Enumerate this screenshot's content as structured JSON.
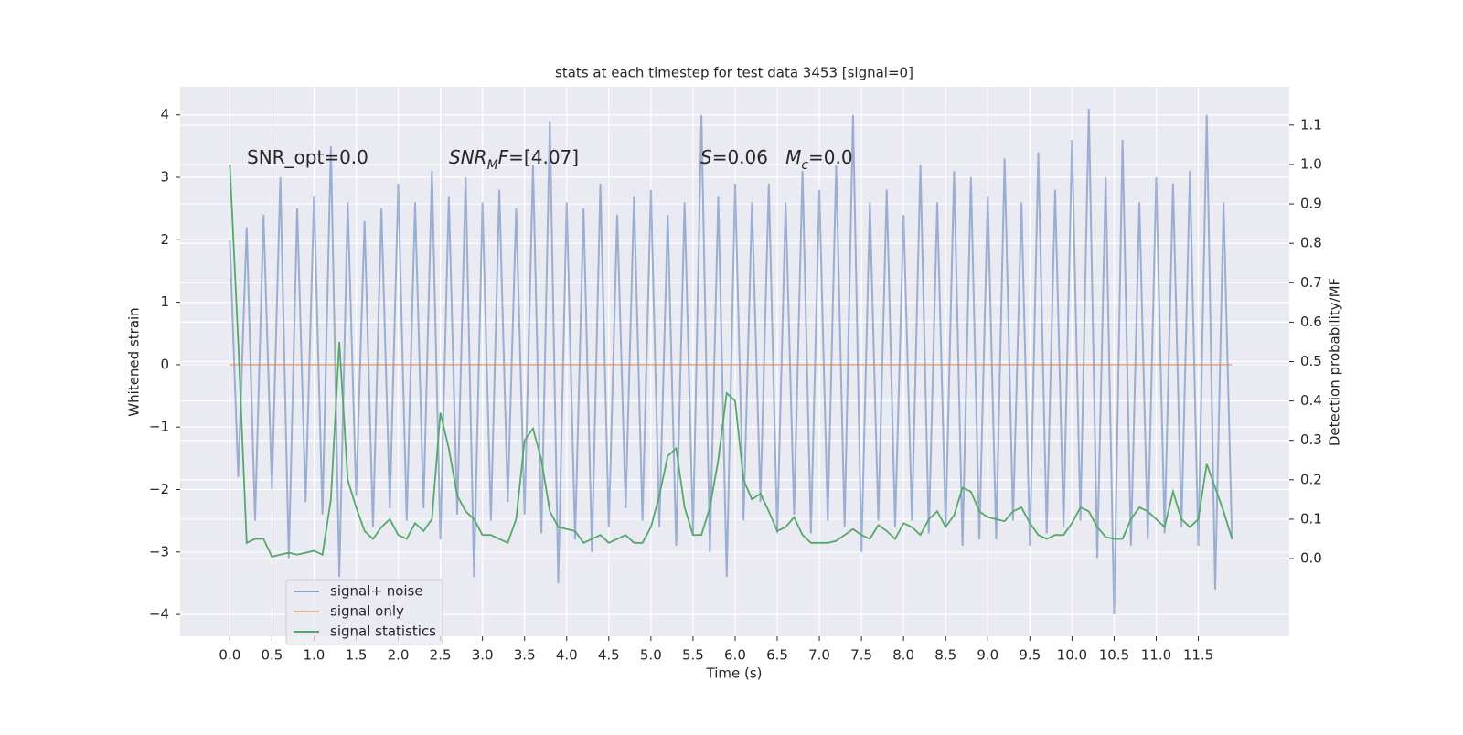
{
  "chart_data": {
    "type": "line",
    "title": "stats at each timestep for test data 3453 [signal=0]",
    "xlabel": "Time (s)",
    "ylabel": "Whitened strain",
    "y2label": "Detection probability/MF",
    "annotations": [
      [
        {
          "text": "SNR_opt=0.0",
          "style": "normal"
        }
      ],
      [
        {
          "text": "SNR",
          "style": "italic"
        },
        {
          "text": "M",
          "style": "sub"
        },
        {
          "text": "F",
          "style": "italic"
        },
        {
          "text": "=[4.07]",
          "style": "normal"
        }
      ],
      [
        {
          "text": "S",
          "style": "italic"
        },
        {
          "text": "=0.06   ",
          "style": "normal"
        },
        {
          "text": "M",
          "style": "italic"
        },
        {
          "text": "c",
          "style": "sub"
        },
        {
          "text": "=0.0",
          "style": "normal"
        }
      ]
    ],
    "x": [
      0,
      0.1,
      0.2,
      0.3,
      0.4,
      0.5,
      0.6,
      0.7,
      0.8,
      0.9,
      1,
      1.1,
      1.2,
      1.3,
      1.4,
      1.5,
      1.6,
      1.7,
      1.8,
      1.9,
      2,
      2.1,
      2.2,
      2.3,
      2.4,
      2.5,
      2.6,
      2.7,
      2.8,
      2.9,
      3,
      3.1,
      3.2,
      3.3,
      3.4,
      3.5,
      3.6,
      3.7,
      3.8,
      3.9,
      4,
      4.1,
      4.2,
      4.3,
      4.4,
      4.5,
      4.6,
      4.7,
      4.8,
      4.9,
      5,
      5.1,
      5.2,
      5.3,
      5.4,
      5.5,
      5.6,
      5.7,
      5.8,
      5.9,
      6,
      6.1,
      6.2,
      6.3,
      6.4,
      6.5,
      6.6,
      6.7,
      6.8,
      6.9,
      7,
      7.1,
      7.2,
      7.3,
      7.4,
      7.5,
      7.6,
      7.7,
      7.8,
      7.9,
      8,
      8.1,
      8.2,
      8.3,
      8.4,
      8.5,
      8.6,
      8.7,
      8.8,
      8.9,
      9,
      9.1,
      9.2,
      9.3,
      9.4,
      9.5,
      9.6,
      9.7,
      9.8,
      9.9,
      10,
      10.1,
      10.2,
      10.3,
      10.4,
      10.5,
      10.6,
      10.7,
      10.8,
      10.9,
      11,
      11.1,
      11.2,
      11.3,
      11.4,
      11.5,
      11.6,
      11.7,
      11.8,
      11.9
    ],
    "series": [
      {
        "name": "signal+ noise",
        "color": "#4c72b0",
        "axis": "y",
        "values": [
          2.0,
          -1.8,
          2.2,
          -2.5,
          2.4,
          -2.0,
          3.0,
          -3.1,
          2.5,
          -2.2,
          2.7,
          -2.4,
          3.5,
          -3.4,
          2.6,
          -2.1,
          2.3,
          -2.6,
          2.5,
          -2.3,
          2.9,
          -2.5,
          2.6,
          -2.3,
          3.1,
          -2.8,
          2.7,
          -2.4,
          3.0,
          -3.4,
          2.6,
          -2.5,
          2.8,
          -2.2,
          2.5,
          -2.4,
          3.2,
          -2.7,
          3.9,
          -3.5,
          2.6,
          -2.8,
          2.5,
          -3.0,
          2.9,
          -2.6,
          2.4,
          -2.3,
          2.7,
          -2.5,
          2.8,
          -2.6,
          2.4,
          -2.9,
          2.6,
          -2.7,
          4.0,
          -3.0,
          2.7,
          -3.4,
          2.9,
          -2.5,
          2.6,
          -2.2,
          2.9,
          -2.7,
          2.6,
          -2.4,
          3.1,
          -2.7,
          2.8,
          -2.5,
          3.2,
          -2.6,
          4.0,
          -3.0,
          2.6,
          -2.5,
          2.8,
          -2.6,
          2.4,
          -2.5,
          3.2,
          -2.7,
          2.6,
          -2.6,
          3.1,
          -2.9,
          3.0,
          -2.8,
          2.7,
          -2.8,
          3.3,
          -2.5,
          2.6,
          -2.9,
          3.4,
          -2.7,
          2.8,
          -2.6,
          3.6,
          -2.5,
          4.1,
          -3.1,
          3.0,
          -4.0,
          3.6,
          -2.9,
          2.6,
          -2.8,
          3.0,
          -2.7,
          2.9,
          -2.6,
          3.1,
          -2.9,
          4.0,
          -3.6,
          2.6,
          -2.8
        ]
      },
      {
        "name": "signal only",
        "color": "#dd8452",
        "axis": "y",
        "values": [
          0,
          0,
          0,
          0,
          0,
          0,
          0,
          0,
          0,
          0,
          0,
          0,
          0,
          0,
          0,
          0,
          0,
          0,
          0,
          0,
          0,
          0,
          0,
          0,
          0,
          0,
          0,
          0,
          0,
          0,
          0,
          0,
          0,
          0,
          0,
          0,
          0,
          0,
          0,
          0,
          0,
          0,
          0,
          0,
          0,
          0,
          0,
          0,
          0,
          0,
          0,
          0,
          0,
          0,
          0,
          0,
          0,
          0,
          0,
          0,
          0,
          0,
          0,
          0,
          0,
          0,
          0,
          0,
          0,
          0,
          0,
          0,
          0,
          0,
          0,
          0,
          0,
          0,
          0,
          0,
          0,
          0,
          0,
          0,
          0,
          0,
          0,
          0,
          0,
          0,
          0,
          0,
          0,
          0,
          0,
          0,
          0,
          0,
          0,
          0,
          0,
          0,
          0,
          0,
          0,
          0,
          0,
          0,
          0,
          0,
          0,
          0,
          0,
          0,
          0,
          0,
          0,
          0,
          0,
          0
        ]
      },
      {
        "name": "signal statistics",
        "color": "#55a868",
        "axis": "y2",
        "values": [
          1.0,
          0.55,
          0.04,
          0.05,
          0.05,
          0.005,
          0.01,
          0.015,
          0.01,
          0.015,
          0.02,
          0.01,
          0.15,
          0.55,
          0.2,
          0.13,
          0.07,
          0.05,
          0.08,
          0.1,
          0.06,
          0.05,
          0.09,
          0.07,
          0.1,
          0.37,
          0.28,
          0.16,
          0.12,
          0.1,
          0.06,
          0.06,
          0.05,
          0.04,
          0.1,
          0.3,
          0.33,
          0.25,
          0.12,
          0.08,
          0.075,
          0.07,
          0.04,
          0.05,
          0.06,
          0.04,
          0.05,
          0.06,
          0.04,
          0.04,
          0.08,
          0.16,
          0.26,
          0.28,
          0.13,
          0.06,
          0.06,
          0.13,
          0.25,
          0.42,
          0.4,
          0.2,
          0.15,
          0.165,
          0.12,
          0.07,
          0.08,
          0.105,
          0.06,
          0.04,
          0.04,
          0.04,
          0.045,
          0.06,
          0.075,
          0.06,
          0.05,
          0.085,
          0.07,
          0.05,
          0.09,
          0.08,
          0.06,
          0.1,
          0.12,
          0.08,
          0.11,
          0.18,
          0.17,
          0.12,
          0.105,
          0.1,
          0.095,
          0.12,
          0.13,
          0.09,
          0.06,
          0.05,
          0.06,
          0.06,
          0.09,
          0.13,
          0.12,
          0.08,
          0.055,
          0.05,
          0.05,
          0.1,
          0.13,
          0.12,
          0.1,
          0.08,
          0.17,
          0.1,
          0.08,
          0.1,
          0.24,
          0.18,
          0.12,
          0.05
        ]
      }
    ],
    "xlim": [
      -0.59,
      12.58
    ],
    "ylim": [
      -4.35,
      4.45
    ],
    "y2lim": [
      -0.197,
      1.197
    ],
    "xticks": [
      {
        "value": 0,
        "label": "0.0"
      },
      0.5,
      {
        "value": 1,
        "label": "1.0"
      },
      1.5,
      {
        "value": 2,
        "label": "2.0"
      },
      2.5,
      {
        "value": 3,
        "label": "3.0"
      },
      3.5,
      {
        "value": 4,
        "label": "4.0"
      },
      4.5,
      {
        "value": 5,
        "label": "5.0"
      },
      5.5,
      {
        "value": 6,
        "label": "6.0"
      },
      6.5,
      {
        "value": 7,
        "label": "7.0"
      },
      7.5,
      {
        "value": 8,
        "label": "8.0"
      },
      8.5,
      {
        "value": 9,
        "label": "9.0"
      },
      9.5,
      {
        "value": 10,
        "label": "10.0"
      },
      10.5,
      {
        "value": 11,
        "label": "11.0"
      },
      11.5
    ],
    "yticks": [
      {
        "value": -4,
        "label": "−4"
      },
      {
        "value": -3,
        "label": "−3"
      },
      {
        "value": -2,
        "label": "−2"
      },
      {
        "value": -1,
        "label": "−1"
      },
      0,
      1,
      2,
      3,
      4
    ],
    "y2ticks": [
      {
        "value": 0,
        "label": "0.0"
      },
      0.1,
      0.2,
      0.3,
      0.4,
      0.5,
      0.6,
      0.7,
      0.8,
      0.9,
      {
        "value": 1,
        "label": "1.0"
      },
      1.1
    ],
    "grid": true,
    "legend": "lower left"
  }
}
